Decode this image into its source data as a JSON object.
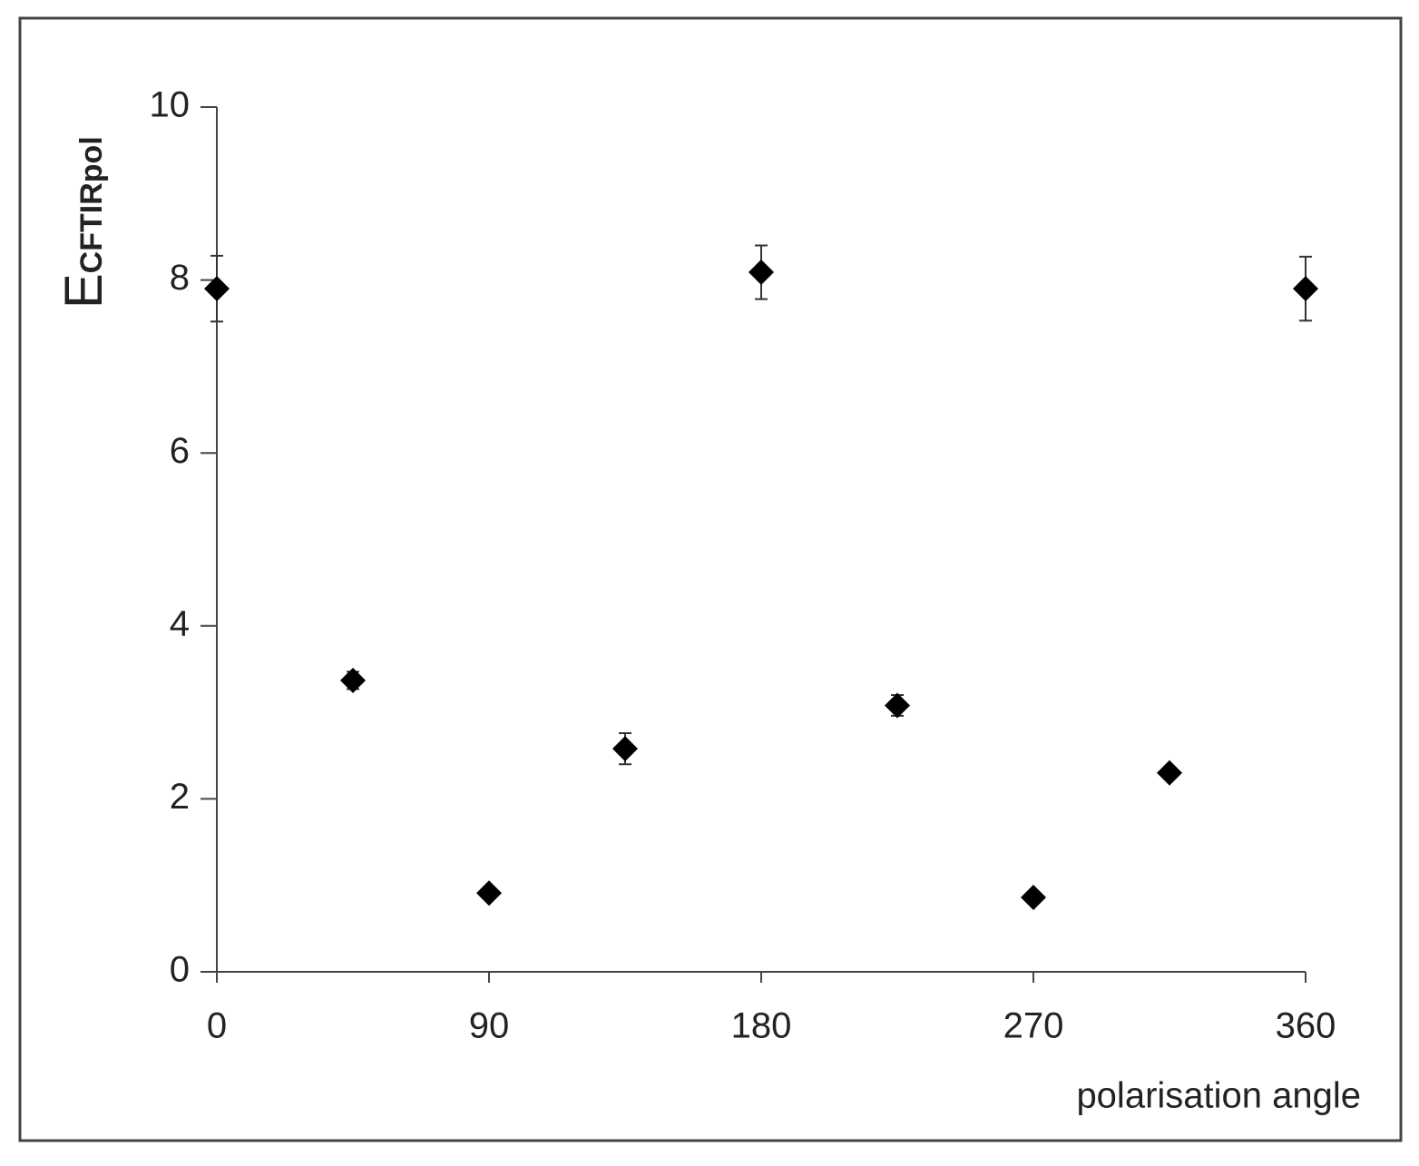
{
  "chart_data": {
    "type": "scatter",
    "y_label": "E",
    "y_label_subscript": "CFTIRpol",
    "x_label": "polarisation angle",
    "x": [
      0,
      45,
      90,
      135,
      180,
      225,
      270,
      315,
      360
    ],
    "values": [
      7.9,
      3.37,
      0.91,
      2.58,
      8.09,
      3.08,
      0.86,
      2.3,
      7.9
    ],
    "errors": [
      0.38,
      0.1,
      0.05,
      0.18,
      0.31,
      0.12,
      0.05,
      0.06,
      0.37
    ],
    "color": "#000000",
    "xlim": [
      0,
      360
    ],
    "xticks": [
      0,
      90,
      180,
      270,
      360
    ],
    "ylim": [
      0,
      10
    ],
    "yticks": [
      0,
      2,
      4,
      6,
      8,
      10
    ]
  }
}
